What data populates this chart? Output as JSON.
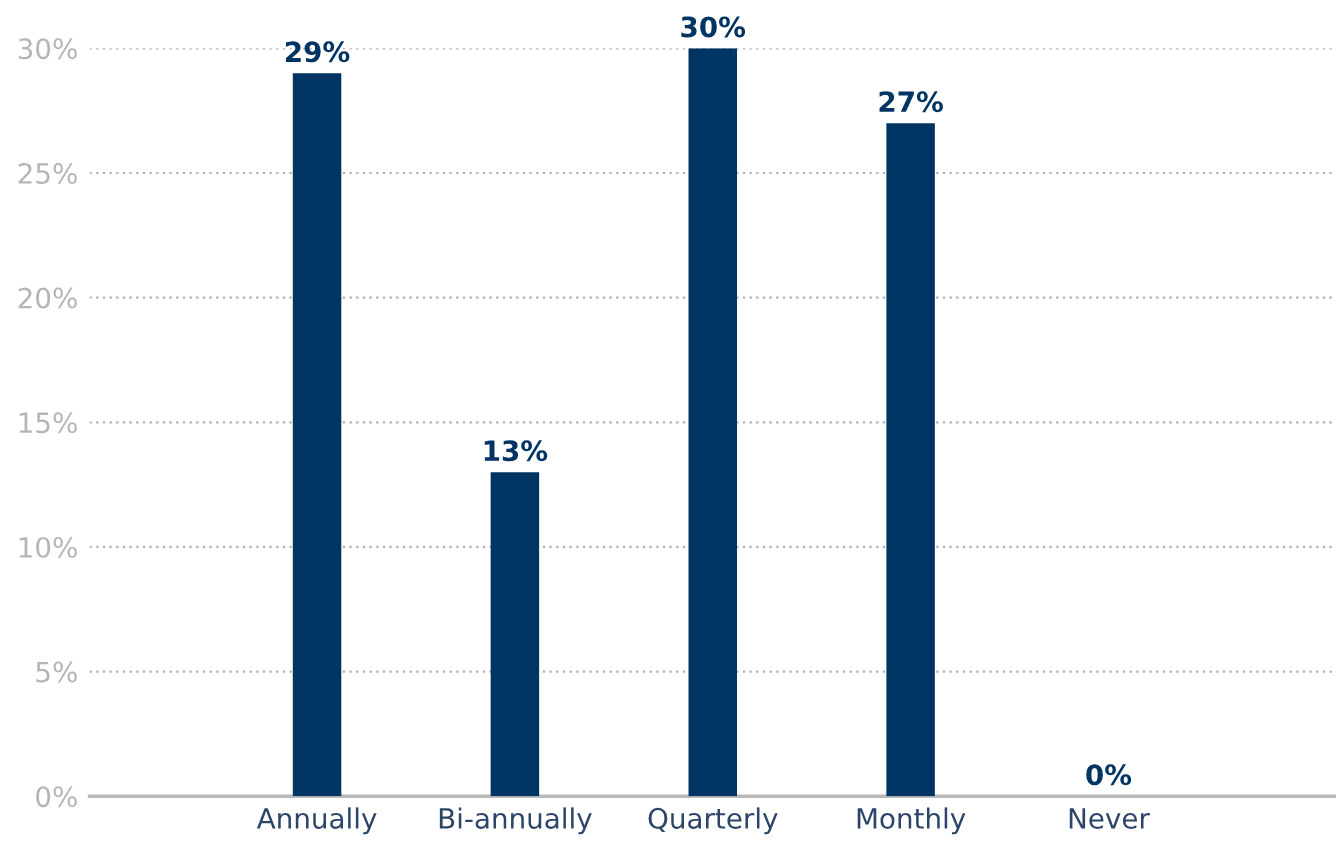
{
  "chart_data": {
    "type": "bar",
    "categories": [
      "Annually",
      "Bi-annually",
      "Quarterly",
      "Monthly",
      "Never"
    ],
    "values": [
      29,
      13,
      30,
      27,
      0
    ],
    "color": "#003462",
    "value_labels": [
      "29%",
      "13%",
      "30%",
      "27%",
      "0%"
    ],
    "ylim": [
      0,
      30
    ],
    "yticks": [
      {
        "value": 0,
        "label": "0%"
      },
      {
        "value": 5,
        "label": "5%"
      },
      {
        "value": 10,
        "label": "10%"
      },
      {
        "value": 15,
        "label": "15%"
      },
      {
        "value": 20,
        "label": "20%"
      },
      {
        "value": 25,
        "label": "25%"
      },
      {
        "value": 30,
        "label": "30%"
      }
    ],
    "grid": "y",
    "legend": false
  }
}
